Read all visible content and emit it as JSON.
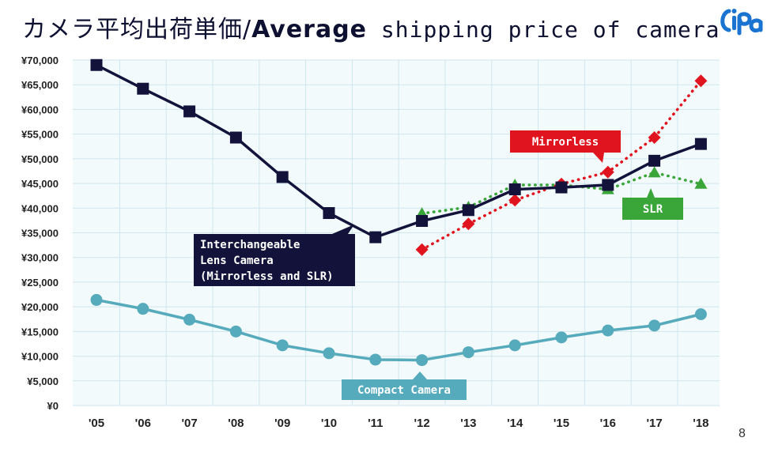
{
  "title": {
    "jp": "カメラ平均出荷単価/",
    "en_bold": "Average",
    "en_rest": " shipping price of camera"
  },
  "logo": {
    "text": "CIPA",
    "color": "#1a73d1"
  },
  "page_number": "8",
  "colors": {
    "interchangeable": "#12123a",
    "mirrorless": "#e0141e",
    "slr": "#3aa63a",
    "compact": "#55aabb",
    "grid": "#cfe6ee",
    "plot_bg": "#f3fafc"
  },
  "chart_data": {
    "type": "line",
    "categories": [
      "'05",
      "'06",
      "'07",
      "'08",
      "'09",
      "'10",
      "'11",
      "'12",
      "'13",
      "'14",
      "'15",
      "'16",
      "'17",
      "'18"
    ],
    "y_tick_labels": [
      "¥70,000",
      "¥65,000",
      "¥60,000",
      "¥55,000",
      "¥50,000",
      "¥45,000",
      "¥40,000",
      "¥35,000",
      "¥30,000",
      "¥25,000",
      "¥20,000",
      "¥15,000",
      "¥10,000",
      "¥5,000",
      "¥0"
    ],
    "ylim": [
      0,
      70000
    ],
    "grid": true,
    "series": [
      {
        "key": "interchangeable",
        "name": "Interchangeable Lens Camera (Mirrorless and SLR)",
        "label_lines": [
          "Interchangeable",
          "Lens Camera",
          "(Mirrorless and SLR)"
        ],
        "style": "solid",
        "marker": "square",
        "values": [
          69000,
          64200,
          59600,
          54300,
          46300,
          39000,
          34100,
          37400,
          39600,
          43800,
          44200,
          44700,
          49600,
          53000
        ]
      },
      {
        "key": "mirrorless",
        "name": "Mirrorless",
        "label_lines": [
          "Mirrorless"
        ],
        "style": "dotted",
        "marker": "diamond",
        "values": [
          null,
          null,
          null,
          null,
          null,
          null,
          null,
          31600,
          36800,
          41600,
          44900,
          47300,
          54300,
          65800
        ]
      },
      {
        "key": "slr",
        "name": "SLR",
        "label_lines": [
          "SLR"
        ],
        "style": "dotted",
        "marker": "triangle",
        "values": [
          null,
          null,
          null,
          null,
          null,
          null,
          null,
          38900,
          40200,
          44700,
          44700,
          43800,
          47200,
          44900
        ]
      },
      {
        "key": "compact",
        "name": "Compact Camera",
        "label_lines": [
          "Compact Camera"
        ],
        "style": "solid",
        "marker": "circle",
        "values": [
          21400,
          19600,
          17400,
          15000,
          12200,
          10600,
          9300,
          9200,
          10800,
          12200,
          13800,
          15200,
          16200,
          18500
        ]
      }
    ]
  }
}
